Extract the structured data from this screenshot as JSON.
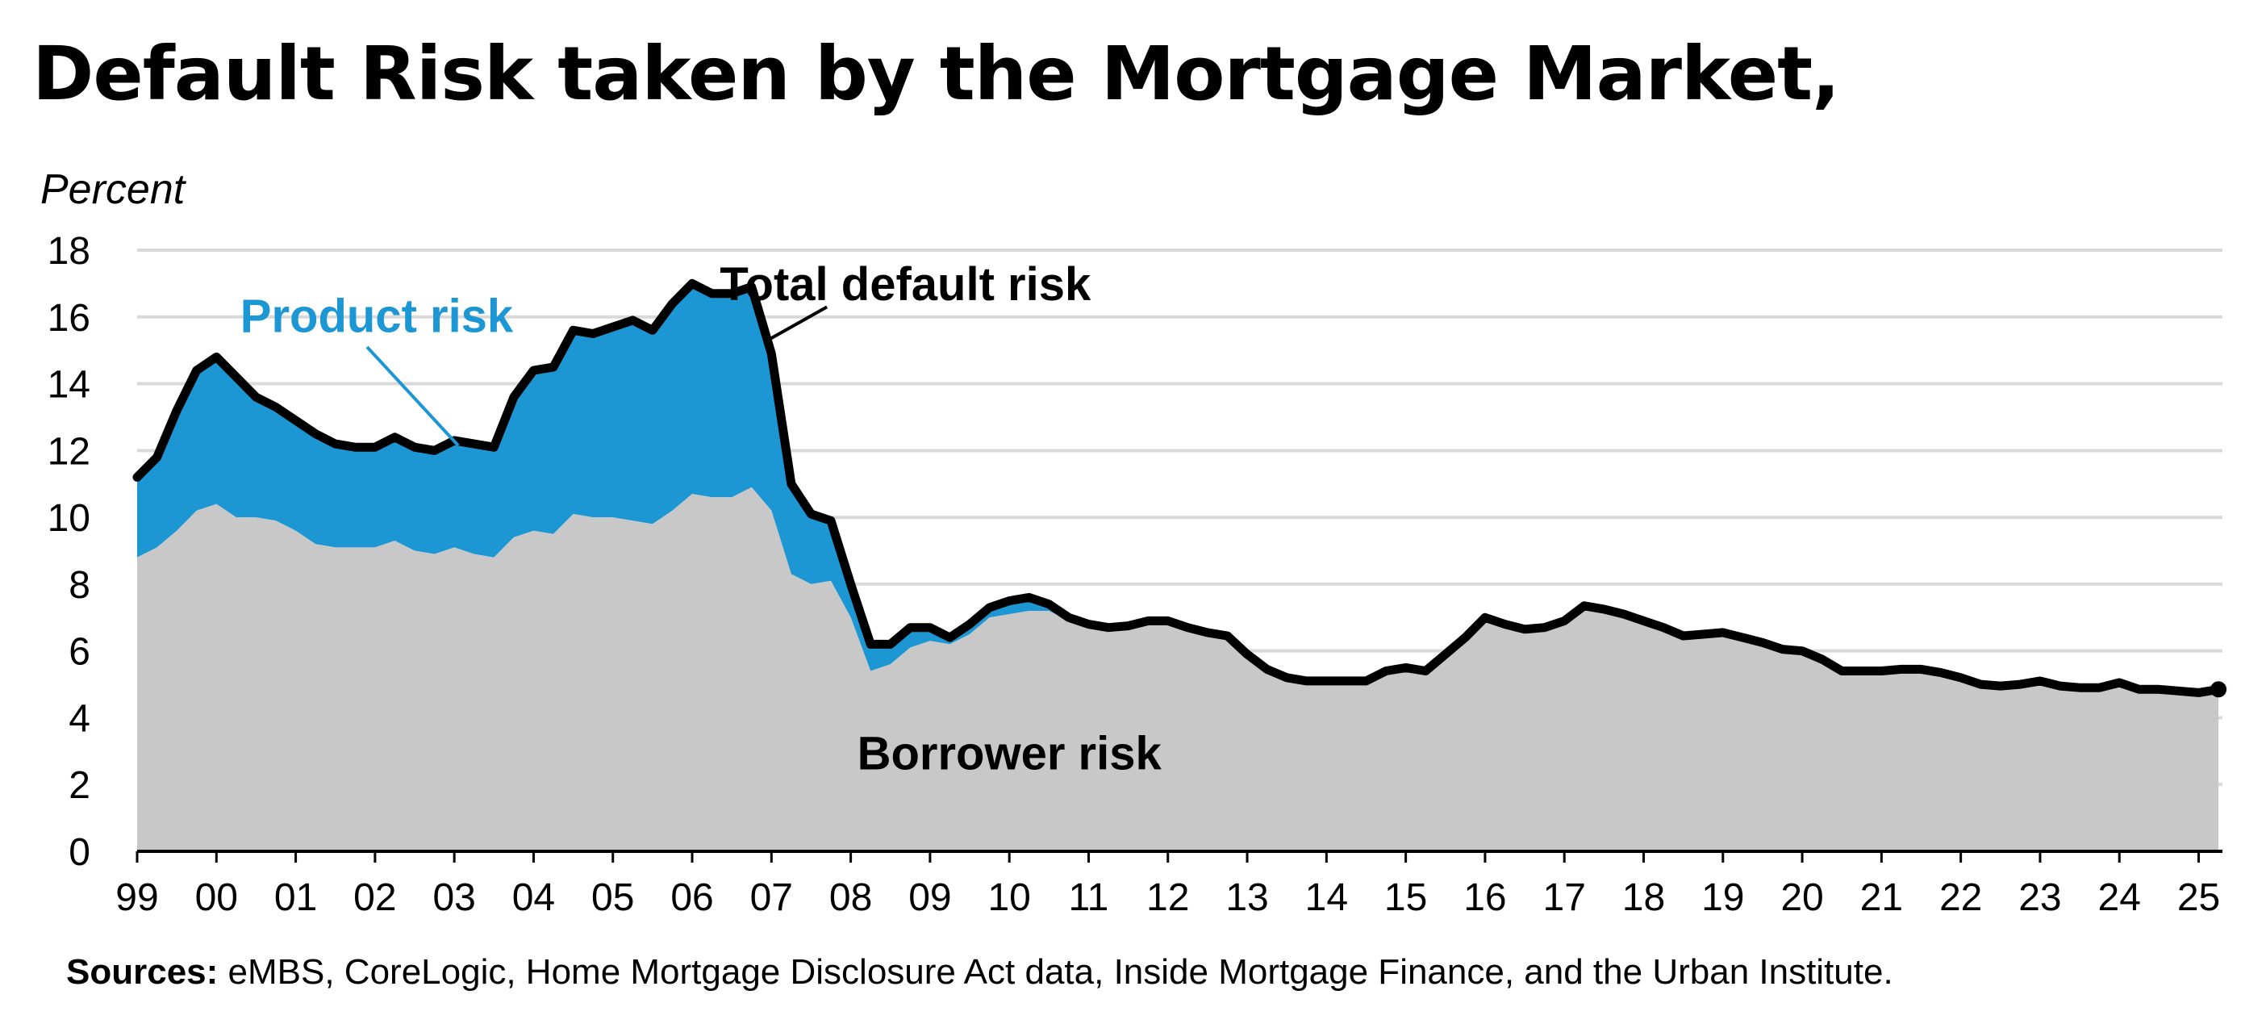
{
  "title": "Default Risk taken by the Mortgage Market,",
  "sources_label": "Sources:",
  "sources_text": " eMBS, CoreLogic, Home Mortgage Disclosure Act data, Inside Mortgage Finance, and the Urban Institute.",
  "colors": {
    "borrower_risk": "#c8c8c8",
    "product_risk": "#1c97d4",
    "product_label": "#1c97d4",
    "total_line": "#000000",
    "grid": "#d9d9d9"
  },
  "chart_data": {
    "type": "area",
    "ylabel": "Percent",
    "xlabel": "",
    "ylim": [
      0,
      18
    ],
    "yticks": [
      0,
      2,
      4,
      6,
      8,
      10,
      12,
      14,
      16,
      18
    ],
    "xlim": [
      1999.0,
      2025.3
    ],
    "xticks": [
      {
        "value": 1999,
        "label": "99"
      },
      {
        "value": 2000,
        "label": "00"
      },
      {
        "value": 2001,
        "label": "01"
      },
      {
        "value": 2002,
        "label": "02"
      },
      {
        "value": 2003,
        "label": "03"
      },
      {
        "value": 2004,
        "label": "04"
      },
      {
        "value": 2005,
        "label": "05"
      },
      {
        "value": 2006,
        "label": "06"
      },
      {
        "value": 2007,
        "label": "07"
      },
      {
        "value": 2008,
        "label": "08"
      },
      {
        "value": 2009,
        "label": "09"
      },
      {
        "value": 2010,
        "label": "10"
      },
      {
        "value": 2011,
        "label": "11"
      },
      {
        "value": 2012,
        "label": "12"
      },
      {
        "value": 2013,
        "label": "13"
      },
      {
        "value": 2014,
        "label": "14"
      },
      {
        "value": 2015,
        "label": "15"
      },
      {
        "value": 2016,
        "label": "16"
      },
      {
        "value": 2017,
        "label": "17"
      },
      {
        "value": 2018,
        "label": "18"
      },
      {
        "value": 2019,
        "label": "19"
      },
      {
        "value": 2020,
        "label": "20"
      },
      {
        "value": 2021,
        "label": "21"
      },
      {
        "value": 2022,
        "label": "22"
      },
      {
        "value": 2023,
        "label": "23"
      },
      {
        "value": 2024,
        "label": "24"
      },
      {
        "value": 2025,
        "label": "25"
      }
    ],
    "grid": "horizontal",
    "annotations": {
      "total": "Total default risk",
      "product": "Product risk",
      "borrower": "Borrower risk"
    },
    "x": [
      1999.0,
      1999.25,
      1999.5,
      1999.75,
      2000.0,
      2000.25,
      2000.5,
      2000.75,
      2001.0,
      2001.25,
      2001.5,
      2001.75,
      2002.0,
      2002.25,
      2002.5,
      2002.75,
      2003.0,
      2003.25,
      2003.5,
      2003.75,
      2004.0,
      2004.25,
      2004.5,
      2004.75,
      2005.0,
      2005.25,
      2005.5,
      2005.75,
      2006.0,
      2006.25,
      2006.5,
      2006.75,
      2007.0,
      2007.25,
      2007.5,
      2007.75,
      2008.0,
      2008.25,
      2008.5,
      2008.75,
      2009.0,
      2009.25,
      2009.5,
      2009.75,
      2010.0,
      2010.25,
      2010.5,
      2010.75,
      2011.0,
      2011.25,
      2011.5,
      2011.75,
      2012.0,
      2012.25,
      2012.5,
      2012.75,
      2013.0,
      2013.25,
      2013.5,
      2013.75,
      2014.0,
      2014.25,
      2014.5,
      2014.75,
      2015.0,
      2015.25,
      2015.5,
      2015.75,
      2016.0,
      2016.25,
      2016.5,
      2016.75,
      2017.0,
      2017.25,
      2017.5,
      2017.75,
      2018.0,
      2018.25,
      2018.5,
      2018.75,
      2019.0,
      2019.25,
      2019.5,
      2019.75,
      2020.0,
      2020.25,
      2020.5,
      2020.75,
      2021.0,
      2021.25,
      2021.5,
      2021.75,
      2022.0,
      2022.25,
      2022.5,
      2022.75,
      2023.0,
      2023.25,
      2023.5,
      2023.75,
      2024.0,
      2024.25,
      2024.5,
      2024.75,
      2025.0,
      2025.25
    ],
    "series": [
      {
        "name": "Borrower risk",
        "values": [
          8.8,
          9.1,
          9.6,
          10.2,
          10.4,
          10.0,
          10.0,
          9.9,
          9.6,
          9.2,
          9.1,
          9.1,
          9.1,
          9.3,
          9.0,
          8.9,
          9.1,
          8.9,
          8.8,
          9.4,
          9.6,
          9.5,
          10.1,
          10.0,
          10.0,
          9.9,
          9.8,
          10.2,
          10.7,
          10.6,
          10.6,
          10.9,
          10.2,
          8.3,
          8.0,
          8.1,
          7.0,
          5.4,
          5.6,
          6.1,
          6.3,
          6.2,
          6.5,
          7.0,
          7.1,
          7.2,
          7.2,
          6.9,
          6.7,
          6.6,
          6.7,
          6.8,
          6.8,
          6.6,
          6.5,
          6.4,
          5.8,
          5.4,
          5.15,
          5.1,
          5.1,
          5.1,
          5.1,
          5.4,
          5.5,
          5.4,
          5.9,
          6.4,
          7.0,
          6.8,
          6.65,
          6.7,
          6.9,
          7.35,
          7.25,
          7.1,
          6.9,
          6.7,
          6.45,
          6.5,
          6.55,
          6.4,
          6.25,
          6.05,
          6.0,
          5.75,
          5.4,
          5.4,
          5.4,
          5.45,
          5.45,
          5.35,
          5.2,
          5.0,
          4.95,
          5.0,
          5.1,
          4.95,
          4.9,
          4.9,
          5.05,
          4.85,
          4.85,
          4.8,
          4.75,
          4.85
        ]
      },
      {
        "name": "Total default risk",
        "values": [
          11.2,
          11.8,
          13.2,
          14.4,
          14.8,
          14.2,
          13.6,
          13.3,
          12.9,
          12.5,
          12.2,
          12.1,
          12.1,
          12.4,
          12.1,
          12.0,
          12.3,
          12.2,
          12.1,
          13.6,
          14.4,
          14.5,
          15.6,
          15.5,
          15.7,
          15.9,
          15.6,
          16.4,
          17.0,
          16.7,
          16.7,
          16.9,
          14.9,
          11.0,
          10.1,
          9.9,
          8.0,
          6.2,
          6.2,
          6.7,
          6.7,
          6.4,
          6.8,
          7.3,
          7.5,
          7.6,
          7.4,
          7.0,
          6.8,
          6.7,
          6.75,
          6.9,
          6.9,
          6.7,
          6.55,
          6.45,
          5.9,
          5.45,
          5.2,
          5.1,
          5.1,
          5.1,
          5.1,
          5.4,
          5.5,
          5.4,
          5.9,
          6.4,
          7.0,
          6.8,
          6.65,
          6.7,
          6.9,
          7.35,
          7.25,
          7.1,
          6.9,
          6.7,
          6.45,
          6.5,
          6.55,
          6.4,
          6.25,
          6.05,
          6.0,
          5.75,
          5.4,
          5.4,
          5.4,
          5.45,
          5.45,
          5.35,
          5.2,
          5.0,
          4.95,
          5.0,
          5.1,
          4.95,
          4.9,
          4.9,
          5.05,
          4.85,
          4.85,
          4.8,
          4.75,
          4.85
        ]
      }
    ]
  }
}
